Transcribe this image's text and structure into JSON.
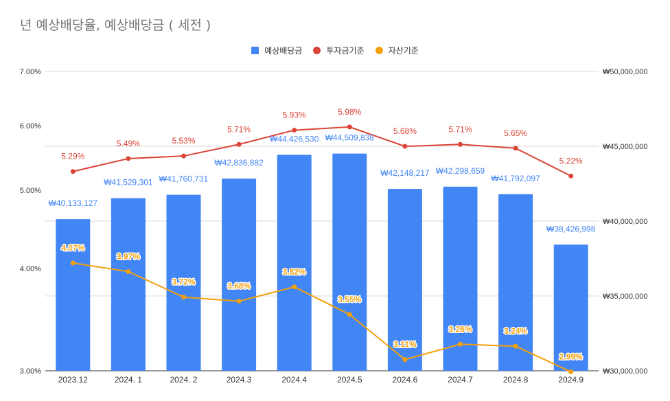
{
  "chart_data": {
    "type": "bar",
    "title": "년 예상배당율, 예상배당금 ( 세전 )",
    "categories": [
      "2023.12",
      "2024. 1",
      "2024. 2",
      "2024.3",
      "2024.4",
      "2024.5",
      "2024.6",
      "2024.7",
      "2024.8",
      "2024.9"
    ],
    "left_axis": {
      "ticks": [
        "7.00%",
        "6.00%",
        "5.00%",
        "4.00%",
        "3.00%"
      ],
      "tick_values": [
        7.0,
        6.0,
        5.0,
        4.0,
        3.0
      ]
    },
    "right_axis": {
      "ticks": [
        "₩50,000,000",
        "₩45,000,000",
        "₩40,000,000",
        "₩35,000,000",
        "₩30,000,000"
      ],
      "ylim": [
        30000000,
        50000000
      ]
    },
    "series": [
      {
        "name": "예상배당금",
        "type": "bar",
        "axis": "right",
        "color": "#4285f4",
        "values": [
          40133127,
          41529301,
          41760731,
          42836882,
          44426530,
          44509838,
          42148217,
          42298659,
          41792097,
          38426998
        ],
        "labels": [
          "₩40,133,127",
          "₩41,529,301",
          "₩41,760,731",
          "₩42,836,882",
          "₩44,426,530",
          "₩44,509,838",
          "₩42,148,217",
          "₩42,298,659",
          "₩41,792,097",
          "₩38,426,998"
        ]
      },
      {
        "name": "투자금기준",
        "type": "line",
        "axis": "left",
        "color": "#db4437",
        "values": [
          5.29,
          5.49,
          5.53,
          5.71,
          5.93,
          5.98,
          5.68,
          5.71,
          5.65,
          5.22
        ],
        "labels": [
          "5.29%",
          "5.49%",
          "5.53%",
          "5.71%",
          "5.93%",
          "5.98%",
          "5.68%",
          "5.71%",
          "5.65%",
          "5.22%"
        ]
      },
      {
        "name": "자산기준",
        "type": "line",
        "axis": "left",
        "color": "#f4a00b",
        "values": [
          4.07,
          3.97,
          3.72,
          3.68,
          3.82,
          3.55,
          3.11,
          3.26,
          3.24,
          2.99
        ],
        "labels": [
          "4.07%",
          "3.97%",
          "3.72%",
          "3.68%",
          "3.82%",
          "3.55%",
          "3.11%",
          "3.26%",
          "3.24%",
          "2.99%"
        ]
      }
    ]
  }
}
